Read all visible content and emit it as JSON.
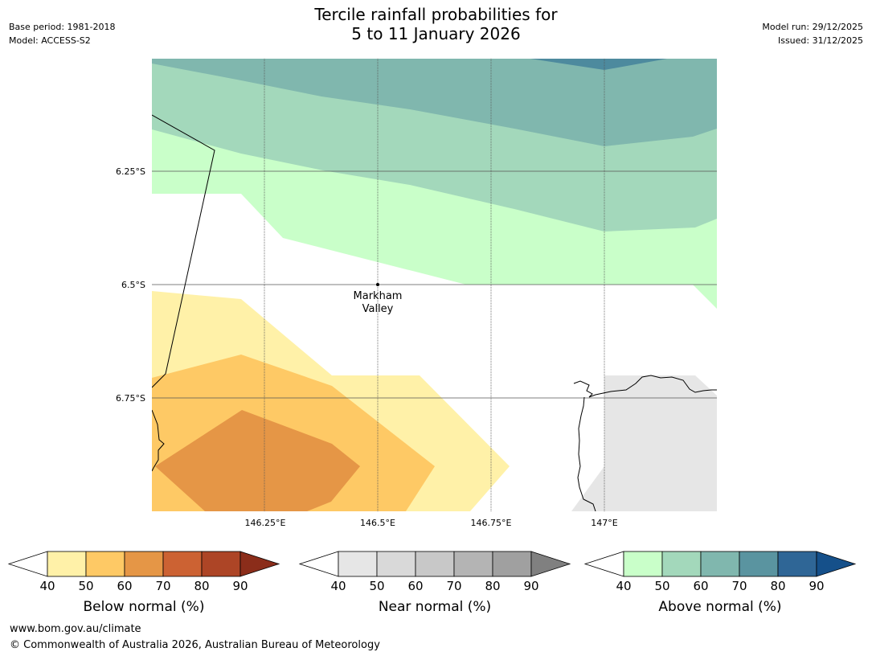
{
  "header": {
    "title_line1": "Tercile rainfall probabilities for",
    "title_line2": "5 to 11 January 2026",
    "base_period": "Base period: 1981-2018",
    "model": "Model: ACCESS-S2",
    "model_run": "Model run: 29/12/2025",
    "issued": "Issued: 31/12/2025"
  },
  "map": {
    "latitude_labels": [
      "6.25°S",
      "6.5°S",
      "6.75°S"
    ],
    "longitude_labels": [
      "146.25°E",
      "146.5°E",
      "146.75°E",
      "147°E"
    ],
    "place": {
      "name_line1": "Markham",
      "name_line2": "Valley"
    }
  },
  "legends": [
    {
      "title": "Below normal (%)",
      "ticks": [
        "40",
        "50",
        "60",
        "70",
        "80",
        "90"
      ],
      "colors": [
        "#fff1a8",
        "#fec965",
        "#e59646",
        "#cc6233",
        "#ad4526"
      ],
      "over_color": "#8b2d1a"
    },
    {
      "title": "Near normal (%)",
      "ticks": [
        "40",
        "50",
        "60",
        "70",
        "80",
        "90"
      ],
      "colors": [
        "#e6e6e6",
        "#d9d9d9",
        "#c8c8c8",
        "#b4b4b4",
        "#a0a0a0"
      ],
      "over_color": "#808080"
    },
    {
      "title": "Above normal (%)",
      "ticks": [
        "40",
        "50",
        "60",
        "70",
        "80",
        "90"
      ],
      "colors": [
        "#c9ffc9",
        "#a3d8bb",
        "#80b7ae",
        "#5a94a0",
        "#2f6696"
      ],
      "over_color": "#15508a"
    }
  ],
  "footer": {
    "url": "www.bom.gov.au/climate",
    "copyright": "© Commonwealth of Australia 2026, Australian Bureau of Meteorology"
  }
}
